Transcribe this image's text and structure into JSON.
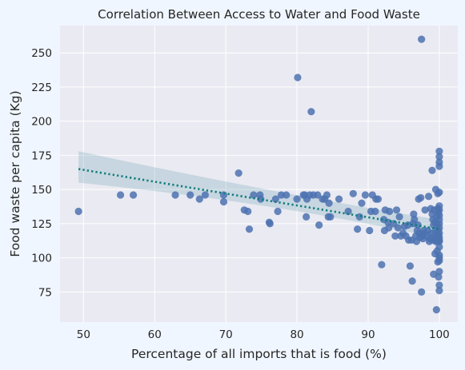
{
  "chart_data": {
    "type": "scatter",
    "title": "Correlation Between Access to Water and Food Waste",
    "xlabel": "Percentage of all imports that is food (%)",
    "ylabel": "Food waste per capita (Kg)",
    "xlim": [
      46.7,
      102.6
    ],
    "ylim": [
      53,
      270
    ],
    "xticks": [
      50,
      60,
      70,
      80,
      90,
      100
    ],
    "yticks": [
      75,
      100,
      125,
      150,
      175,
      200,
      225,
      250
    ],
    "grid": true,
    "colors": {
      "points": "#4c72b0",
      "regression_line": "#0e7c7b",
      "confidence_band": "#5f9aaa",
      "plot_background": "#eaeaf2",
      "figure_background": "#f0f6ff"
    },
    "regression": {
      "x_start": 49.3,
      "y_start": 165,
      "x_end": 100,
      "y_end": 121,
      "ci_start": [
        155,
        178
      ],
      "ci_mid": [
        140,
        146
      ],
      "ci_end": [
        114,
        128
      ],
      "x_mid": 78
    },
    "points": [
      [
        49.3,
        134
      ],
      [
        55.2,
        146
      ],
      [
        57.0,
        146
      ],
      [
        62.9,
        146
      ],
      [
        65.0,
        146
      ],
      [
        66.3,
        143
      ],
      [
        67.1,
        146
      ],
      [
        69.7,
        146
      ],
      [
        69.7,
        141
      ],
      [
        71.8,
        162
      ],
      [
        72.6,
        135
      ],
      [
        73.1,
        134
      ],
      [
        73.3,
        121
      ],
      [
        73.9,
        146
      ],
      [
        74.8,
        146
      ],
      [
        74.9,
        143
      ],
      [
        76.1,
        126
      ],
      [
        76.2,
        125
      ],
      [
        77.0,
        143
      ],
      [
        77.3,
        134
      ],
      [
        77.8,
        146
      ],
      [
        78.5,
        146
      ],
      [
        80.0,
        143
      ],
      [
        80.1,
        232
      ],
      [
        80.9,
        146
      ],
      [
        81.1,
        146
      ],
      [
        81.3,
        130
      ],
      [
        81.4,
        143
      ],
      [
        81.8,
        146
      ],
      [
        82.0,
        207
      ],
      [
        82.3,
        146
      ],
      [
        82.9,
        146
      ],
      [
        83.1,
        124
      ],
      [
        83.6,
        143
      ],
      [
        83.9,
        143
      ],
      [
        84.2,
        146
      ],
      [
        84.4,
        130
      ],
      [
        84.5,
        140
      ],
      [
        84.7,
        130
      ],
      [
        85.9,
        143
      ],
      [
        87.2,
        134
      ],
      [
        87.9,
        147
      ],
      [
        88.5,
        121
      ],
      [
        88.8,
        130
      ],
      [
        89.1,
        140
      ],
      [
        89.6,
        146
      ],
      [
        90.2,
        120
      ],
      [
        90.4,
        134
      ],
      [
        90.6,
        146
      ],
      [
        91.0,
        134
      ],
      [
        91.1,
        143
      ],
      [
        91.4,
        143
      ],
      [
        91.9,
        95
      ],
      [
        92.2,
        128
      ],
      [
        92.3,
        120
      ],
      [
        92.4,
        135
      ],
      [
        92.8,
        126
      ],
      [
        92.9,
        122
      ],
      [
        93.0,
        134
      ],
      [
        93.6,
        125
      ],
      [
        93.8,
        116
      ],
      [
        94.0,
        135
      ],
      [
        94.2,
        122
      ],
      [
        94.4,
        130
      ],
      [
        94.6,
        116
      ],
      [
        94.9,
        118
      ],
      [
        95.1,
        123
      ],
      [
        95.3,
        116
      ],
      [
        95.6,
        124
      ],
      [
        95.7,
        113
      ],
      [
        95.9,
        94
      ],
      [
        96.1,
        113
      ],
      [
        96.2,
        83
      ],
      [
        96.3,
        125
      ],
      [
        96.4,
        132
      ],
      [
        96.5,
        128
      ],
      [
        96.7,
        116
      ],
      [
        96.8,
        112
      ],
      [
        96.9,
        120
      ],
      [
        97.0,
        124
      ],
      [
        97.1,
        143
      ],
      [
        97.2,
        118
      ],
      [
        97.3,
        115
      ],
      [
        97.4,
        144
      ],
      [
        97.5,
        75
      ],
      [
        97.5,
        260
      ],
      [
        97.6,
        116
      ],
      [
        97.7,
        114
      ],
      [
        97.8,
        120
      ],
      [
        97.9,
        118
      ],
      [
        98.0,
        135
      ],
      [
        98.2,
        116
      ],
      [
        98.4,
        120
      ],
      [
        98.5,
        145
      ],
      [
        98.6,
        112
      ],
      [
        98.7,
        114
      ],
      [
        98.8,
        136
      ],
      [
        98.9,
        118
      ],
      [
        99.0,
        164
      ],
      [
        99.0,
        132
      ],
      [
        99.1,
        113
      ],
      [
        99.1,
        128
      ],
      [
        99.2,
        88
      ],
      [
        99.2,
        124
      ],
      [
        99.3,
        116
      ],
      [
        99.3,
        135
      ],
      [
        99.4,
        103
      ],
      [
        99.4,
        126
      ],
      [
        99.5,
        150
      ],
      [
        99.5,
        120
      ],
      [
        99.5,
        112
      ],
      [
        99.6,
        62
      ],
      [
        99.6,
        114
      ],
      [
        99.6,
        130
      ],
      [
        99.7,
        118
      ],
      [
        99.7,
        124
      ],
      [
        99.7,
        105
      ],
      [
        99.8,
        136
      ],
      [
        99.8,
        112
      ],
      [
        99.8,
        97
      ],
      [
        99.8,
        147
      ],
      [
        99.9,
        120
      ],
      [
        99.9,
        116
      ],
      [
        99.9,
        133
      ],
      [
        99.9,
        86
      ],
      [
        100.0,
        148
      ],
      [
        100.0,
        138
      ],
      [
        100.0,
        128
      ],
      [
        100.0,
        122
      ],
      [
        100.0,
        118
      ],
      [
        100.0,
        115
      ],
      [
        100.0,
        112
      ],
      [
        100.0,
        108
      ],
      [
        100.0,
        102
      ],
      [
        100.0,
        98
      ],
      [
        100.0,
        90
      ],
      [
        100.0,
        80
      ],
      [
        100.0,
        76
      ],
      [
        100.0,
        167
      ],
      [
        100.0,
        170
      ],
      [
        100.0,
        174
      ],
      [
        100.0,
        178
      ],
      [
        100.0,
        135
      ],
      [
        100.0,
        125
      ],
      [
        100.0,
        131
      ],
      [
        100.0,
        113
      ],
      [
        100.0,
        100
      ]
    ]
  }
}
